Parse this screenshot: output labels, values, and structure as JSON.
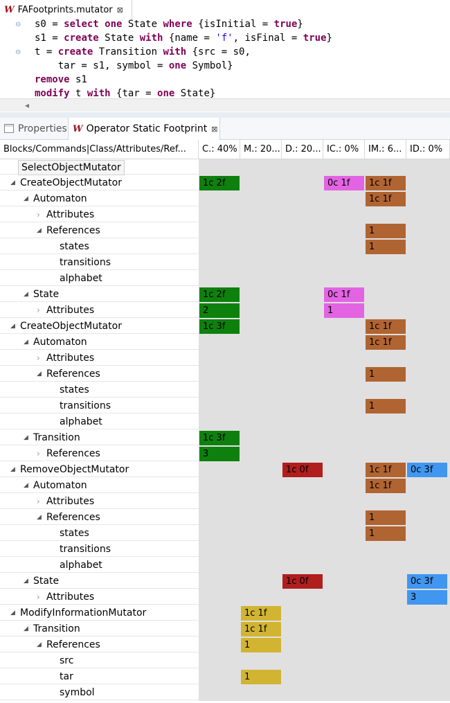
{
  "editor": {
    "tab_title": "FAFootprints.mutator",
    "code_lines": [
      [
        [
          "t",
          "s0 = "
        ],
        [
          "k",
          "select"
        ],
        [
          "t",
          " "
        ],
        [
          "k",
          "one"
        ],
        [
          "t",
          " State "
        ],
        [
          "k",
          "where"
        ],
        [
          "t",
          " {isInitial = "
        ],
        [
          "k",
          "true"
        ],
        [
          "t",
          "}"
        ]
      ],
      [
        [
          "t",
          "s1 = "
        ],
        [
          "k",
          "create"
        ],
        [
          "t",
          " State "
        ],
        [
          "k",
          "with"
        ],
        [
          "t",
          " {name = "
        ],
        [
          "s",
          "'f'"
        ],
        [
          "t",
          ", isFinal = "
        ],
        [
          "k",
          "true"
        ],
        [
          "t",
          "}"
        ]
      ],
      [
        [
          "t",
          "t = "
        ],
        [
          "k",
          "create"
        ],
        [
          "t",
          " Transition "
        ],
        [
          "k",
          "with"
        ],
        [
          "t",
          " {src = s0,"
        ]
      ],
      [
        [
          "t",
          "    tar = s1, symbol = "
        ],
        [
          "k",
          "one"
        ],
        [
          "t",
          " Symbol}"
        ]
      ],
      [
        [
          "k",
          "remove"
        ],
        [
          "t",
          " s1"
        ]
      ],
      [
        [
          "k",
          "modify"
        ],
        [
          "t",
          " t "
        ],
        [
          "k",
          "with"
        ],
        [
          "t",
          " {tar = "
        ],
        [
          "k",
          "one"
        ],
        [
          "t",
          " State}"
        ]
      ]
    ]
  },
  "views": {
    "properties_label": "Properties",
    "active_label": "Operator Static Footprint"
  },
  "columns": [
    "Blocks/Commands|Class/Attributes/Ref...",
    "C.: 40%",
    "M.: 20...",
    "D.: 20...",
    "IC.: 0%",
    "IM.: 6...",
    "ID.: 0%"
  ],
  "colors": {
    "C": "#0e800e",
    "M": "#d2b433",
    "D": "#b01e1e",
    "IC": "#e364e3",
    "IM": "#b06432",
    "ID": "#4196f0"
  },
  "rows": [
    {
      "label": "SelectObjectMutator",
      "level": 0,
      "toggle": "none",
      "button": true,
      "cells": {}
    },
    {
      "label": "CreateObjectMutator",
      "level": 0,
      "toggle": "open",
      "cells": {
        "C": "1c 2f",
        "IC": "0c 1f",
        "IM": "1c 1f"
      }
    },
    {
      "label": "Automaton",
      "level": 1,
      "toggle": "open",
      "cells": {
        "IM": "1c 1f"
      }
    },
    {
      "label": "Attributes",
      "level": 2,
      "toggle": "closed",
      "cells": {}
    },
    {
      "label": "References",
      "level": 2,
      "toggle": "open",
      "cells": {
        "IM": "1"
      }
    },
    {
      "label": "states",
      "level": 3,
      "toggle": "none",
      "cells": {
        "IM": "1"
      }
    },
    {
      "label": "transitions",
      "level": 3,
      "toggle": "none",
      "cells": {}
    },
    {
      "label": "alphabet",
      "level": 3,
      "toggle": "none",
      "cells": {}
    },
    {
      "label": "State",
      "level": 1,
      "toggle": "open",
      "cells": {
        "C": "1c 2f",
        "IC": "0c 1f"
      }
    },
    {
      "label": "Attributes",
      "level": 2,
      "toggle": "closed",
      "cells": {
        "C": "2",
        "IC": "1"
      }
    },
    {
      "label": "CreateObjectMutator",
      "level": 0,
      "toggle": "open",
      "cells": {
        "C": "1c 3f",
        "IM": "1c 1f"
      }
    },
    {
      "label": "Automaton",
      "level": 1,
      "toggle": "open",
      "cells": {
        "IM": "1c 1f"
      }
    },
    {
      "label": "Attributes",
      "level": 2,
      "toggle": "closed",
      "cells": {}
    },
    {
      "label": "References",
      "level": 2,
      "toggle": "open",
      "cells": {
        "IM": "1"
      }
    },
    {
      "label": "states",
      "level": 3,
      "toggle": "none",
      "cells": {}
    },
    {
      "label": "transitions",
      "level": 3,
      "toggle": "none",
      "cells": {
        "IM": "1"
      }
    },
    {
      "label": "alphabet",
      "level": 3,
      "toggle": "none",
      "cells": {}
    },
    {
      "label": "Transition",
      "level": 1,
      "toggle": "open",
      "cells": {
        "C": "1c 3f"
      }
    },
    {
      "label": "References",
      "level": 2,
      "toggle": "closed",
      "cells": {
        "C": "3"
      }
    },
    {
      "label": "RemoveObjectMutator",
      "level": 0,
      "toggle": "open",
      "cells": {
        "D": "1c 0f",
        "IM": "1c 1f",
        "ID": "0c 3f"
      }
    },
    {
      "label": "Automaton",
      "level": 1,
      "toggle": "open",
      "cells": {
        "IM": "1c 1f"
      }
    },
    {
      "label": "Attributes",
      "level": 2,
      "toggle": "closed",
      "cells": {}
    },
    {
      "label": "References",
      "level": 2,
      "toggle": "open",
      "cells": {
        "IM": "1"
      }
    },
    {
      "label": "states",
      "level": 3,
      "toggle": "none",
      "cells": {
        "IM": "1"
      }
    },
    {
      "label": "transitions",
      "level": 3,
      "toggle": "none",
      "cells": {}
    },
    {
      "label": "alphabet",
      "level": 3,
      "toggle": "none",
      "cells": {}
    },
    {
      "label": "State",
      "level": 1,
      "toggle": "open",
      "cells": {
        "D": "1c 0f",
        "ID": "0c 3f"
      }
    },
    {
      "label": "Attributes",
      "level": 2,
      "toggle": "closed",
      "cells": {
        "ID": "3"
      }
    },
    {
      "label": "ModifyInformationMutator",
      "level": 0,
      "toggle": "open",
      "cells": {
        "M": "1c 1f"
      }
    },
    {
      "label": "Transition",
      "level": 1,
      "toggle": "open",
      "cells": {
        "M": "1c 1f"
      }
    },
    {
      "label": "References",
      "level": 2,
      "toggle": "open",
      "cells": {
        "M": "1"
      }
    },
    {
      "label": "src",
      "level": 3,
      "toggle": "none",
      "cells": {}
    },
    {
      "label": "tar",
      "level": 3,
      "toggle": "none",
      "cells": {
        "M": "1"
      }
    },
    {
      "label": "symbol",
      "level": 3,
      "toggle": "none",
      "cells": {}
    }
  ]
}
